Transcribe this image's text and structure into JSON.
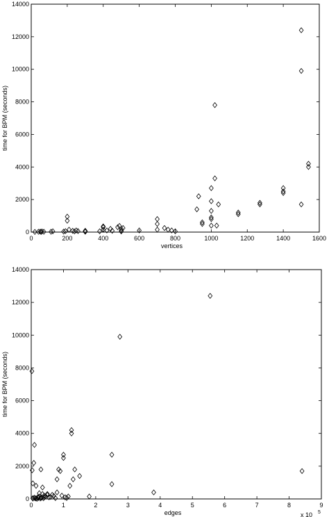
{
  "chart_data": [
    {
      "type": "scatter",
      "marker": "diamond",
      "xlabel": "vertices",
      "ylabel": "time for BPM (seconds)",
      "xlim": [
        0,
        1600
      ],
      "ylim": [
        0,
        14000
      ],
      "xticks": [
        0,
        200,
        400,
        600,
        800,
        1000,
        1200,
        1400,
        1600
      ],
      "yticks": [
        0,
        2000,
        4000,
        6000,
        8000,
        10000,
        12000,
        14000
      ],
      "grid": false,
      "points": [
        [
          20,
          10
        ],
        [
          40,
          20
        ],
        [
          50,
          30
        ],
        [
          55,
          10
        ],
        [
          60,
          40
        ],
        [
          70,
          20
        ],
        [
          110,
          20
        ],
        [
          120,
          50
        ],
        [
          180,
          30
        ],
        [
          190,
          60
        ],
        [
          200,
          950
        ],
        [
          200,
          700
        ],
        [
          210,
          150
        ],
        [
          230,
          80
        ],
        [
          240,
          40
        ],
        [
          250,
          100
        ],
        [
          260,
          60
        ],
        [
          300,
          40
        ],
        [
          300,
          80
        ],
        [
          300,
          20
        ],
        [
          380,
          50
        ],
        [
          400,
          350
        ],
        [
          400,
          300
        ],
        [
          400,
          150
        ],
        [
          420,
          100
        ],
        [
          440,
          200
        ],
        [
          450,
          80
        ],
        [
          480,
          300
        ],
        [
          490,
          380
        ],
        [
          500,
          200
        ],
        [
          500,
          100
        ],
        [
          500,
          40
        ],
        [
          510,
          250
        ],
        [
          600,
          100
        ],
        [
          700,
          800
        ],
        [
          700,
          500
        ],
        [
          700,
          150
        ],
        [
          740,
          250
        ],
        [
          760,
          150
        ],
        [
          780,
          100
        ],
        [
          800,
          50
        ],
        [
          920,
          1400
        ],
        [
          930,
          2200
        ],
        [
          950,
          600
        ],
        [
          950,
          500
        ],
        [
          1000,
          2700
        ],
        [
          1000,
          1900
        ],
        [
          1000,
          1300
        ],
        [
          1000,
          900
        ],
        [
          1000,
          800
        ],
        [
          1000,
          400
        ],
        [
          1020,
          7800
        ],
        [
          1020,
          3300
        ],
        [
          1030,
          400
        ],
        [
          1040,
          1700
        ],
        [
          1150,
          1200
        ],
        [
          1150,
          1100
        ],
        [
          1270,
          1800
        ],
        [
          1270,
          1700
        ],
        [
          1400,
          2700
        ],
        [
          1400,
          2500
        ],
        [
          1400,
          2400
        ],
        [
          1500,
          12400
        ],
        [
          1500,
          9900
        ],
        [
          1500,
          1700
        ],
        [
          1540,
          4200
        ],
        [
          1540,
          4000
        ]
      ]
    },
    {
      "type": "scatter",
      "marker": "diamond",
      "xlabel": "edges",
      "ylabel": "time for BPM (seconds)",
      "x_scale_label": "x 10",
      "x_scale_exponent": "5",
      "xlim": [
        0,
        9
      ],
      "ylim": [
        0,
        14000
      ],
      "xticks": [
        0,
        1,
        2,
        3,
        4,
        5,
        6,
        7,
        8,
        9
      ],
      "yticks": [
        0,
        2000,
        4000,
        6000,
        8000,
        10000,
        12000,
        14000
      ],
      "grid": false,
      "points": [
        [
          0.02,
          7800
        ],
        [
          0.03,
          1750
        ],
        [
          0.05,
          950
        ],
        [
          0.08,
          2200
        ],
        [
          0.1,
          3300
        ],
        [
          0.05,
          50
        ],
        [
          0.1,
          80
        ],
        [
          0.15,
          30
        ],
        [
          0.2,
          100
        ],
        [
          0.25,
          150
        ],
        [
          0.3,
          60
        ],
        [
          0.35,
          300
        ],
        [
          0.4,
          200
        ],
        [
          0.5,
          250
        ],
        [
          0.6,
          120
        ],
        [
          0.7,
          180
        ],
        [
          0.15,
          800
        ],
        [
          0.25,
          350
        ],
        [
          0.3,
          1800
        ],
        [
          0.35,
          700
        ],
        [
          0.4,
          100
        ],
        [
          0.5,
          300
        ],
        [
          0.8,
          1200
        ],
        [
          0.85,
          1800
        ],
        [
          0.9,
          1700
        ],
        [
          0.8,
          400
        ],
        [
          0.95,
          200
        ],
        [
          1.0,
          2700
        ],
        [
          1.0,
          2500
        ],
        [
          1.05,
          100
        ],
        [
          1.1,
          60
        ],
        [
          1.2,
          800
        ],
        [
          1.25,
          4200
        ],
        [
          1.25,
          4000
        ],
        [
          1.3,
          1200
        ],
        [
          1.35,
          1800
        ],
        [
          1.5,
          1400
        ],
        [
          1.8,
          150
        ],
        [
          2.5,
          2700
        ],
        [
          2.5,
          900
        ],
        [
          2.75,
          9900
        ],
        [
          3.8,
          400
        ],
        [
          5.55,
          12400
        ],
        [
          8.4,
          1700
        ],
        [
          0.05,
          20
        ],
        [
          0.12,
          40
        ],
        [
          0.18,
          10
        ],
        [
          0.22,
          60
        ],
        [
          0.28,
          30
        ],
        [
          0.32,
          80
        ],
        [
          0.38,
          40
        ],
        [
          0.45,
          150
        ],
        [
          0.55,
          100
        ],
        [
          0.65,
          250
        ],
        [
          0.75,
          50
        ],
        [
          1.15,
          150
        ]
      ]
    }
  ]
}
